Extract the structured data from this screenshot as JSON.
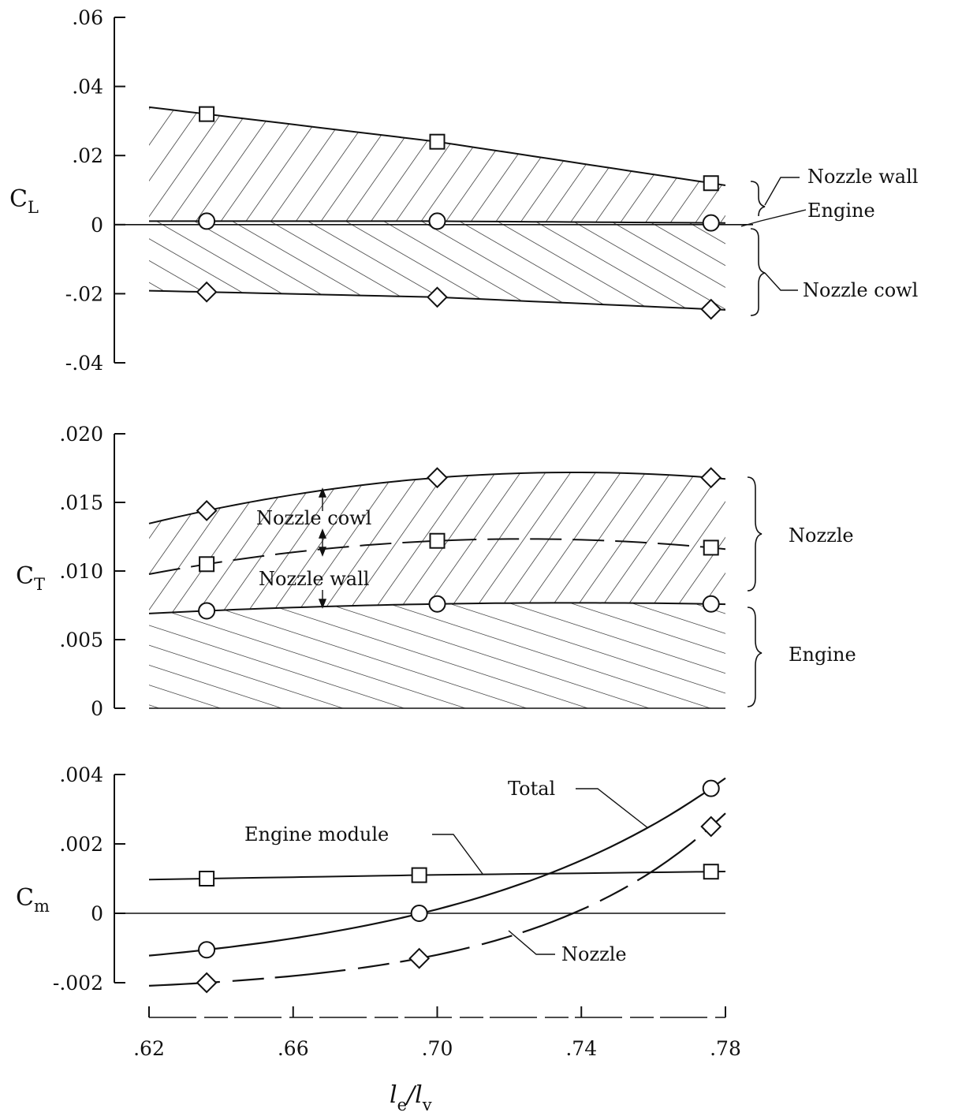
{
  "chart_data": [
    {
      "type": "area",
      "ylabel_main": "C",
      "ylabel_sub": "L",
      "ylim": [
        -0.04,
        0.06
      ],
      "yticks": [
        ".06",
        ".04",
        ".02",
        "0",
        "-.02",
        "-.04"
      ],
      "ytick_values": [
        0.06,
        0.04,
        0.02,
        0,
        -0.02,
        -0.04
      ],
      "x": [
        0.636,
        0.7,
        0.776
      ],
      "series": [
        {
          "name": "Nozzle wall",
          "marker": "square",
          "values": [
            0.032,
            0.024,
            0.012
          ]
        },
        {
          "name": "Engine",
          "marker": "circle",
          "values": [
            0.001,
            0.001,
            0.0005
          ]
        },
        {
          "name": "Nozzle cowl",
          "marker": "diamond",
          "values": [
            -0.0195,
            -0.021,
            -0.0245
          ]
        }
      ]
    },
    {
      "type": "area",
      "ylabel_main": "C",
      "ylabel_sub": "T",
      "ylim": [
        0,
        0.02
      ],
      "yticks": [
        ".020",
        ".015",
        ".010",
        ".005",
        "0"
      ],
      "ytick_values": [
        0.02,
        0.015,
        0.01,
        0.005,
        0
      ],
      "x": [
        0.636,
        0.7,
        0.776
      ],
      "series": [
        {
          "name": "Nozzle cowl",
          "marker": "diamond",
          "values": [
            0.0144,
            0.0168,
            0.0168
          ]
        },
        {
          "name": "Nozzle wall",
          "marker": "square",
          "values": [
            0.0105,
            0.0122,
            0.0117
          ]
        },
        {
          "name": "Engine",
          "marker": "circle",
          "values": [
            0.0071,
            0.0076,
            0.0076
          ]
        }
      ],
      "group_labels": [
        "Nozzle",
        "Engine"
      ]
    },
    {
      "type": "line",
      "ylabel_main": "C",
      "ylabel_sub": "m",
      "ylim": [
        -0.002,
        0.004
      ],
      "yticks": [
        ".004",
        ".002",
        "0",
        "-.002"
      ],
      "ytick_values": [
        0.004,
        0.002,
        0,
        -0.002
      ],
      "xticks": [
        ".62",
        ".66",
        ".70",
        ".74",
        ".78"
      ],
      "xtick_values": [
        0.62,
        0.66,
        0.7,
        0.74,
        0.78
      ],
      "xlim": [
        0.62,
        0.78
      ],
      "xlabel_main": "l",
      "xlabel_sub1": "e",
      "xlabel_sep": "/l",
      "xlabel_sub2": "v",
      "series": [
        {
          "name": "Engine module",
          "marker": "square",
          "x": [
            0.636,
            0.695,
            0.776
          ],
          "values": [
            0.001,
            0.0011,
            0.0012
          ]
        },
        {
          "name": "Total",
          "marker": "circle",
          "x": [
            0.636,
            0.695,
            0.776
          ],
          "values": [
            -0.00105,
            0.0,
            0.0036
          ]
        },
        {
          "name": "Nozzle",
          "marker": "diamond",
          "x": [
            0.636,
            0.695,
            0.776
          ],
          "values": [
            -0.002,
            -0.0013,
            0.0025
          ]
        }
      ]
    }
  ],
  "annotations": {
    "cl_nozzle_wall": "Nozzle wall",
    "cl_engine": "Engine",
    "cl_nozzle_cowl": "Nozzle cowl",
    "ct_nozzle_cowl": "Nozzle cowl",
    "ct_nozzle_wall": "Nozzle wall",
    "ct_nozzle": "Nozzle",
    "ct_engine": "Engine",
    "cm_total": "Total",
    "cm_engine_module": "Engine module",
    "cm_nozzle": "Nozzle"
  }
}
